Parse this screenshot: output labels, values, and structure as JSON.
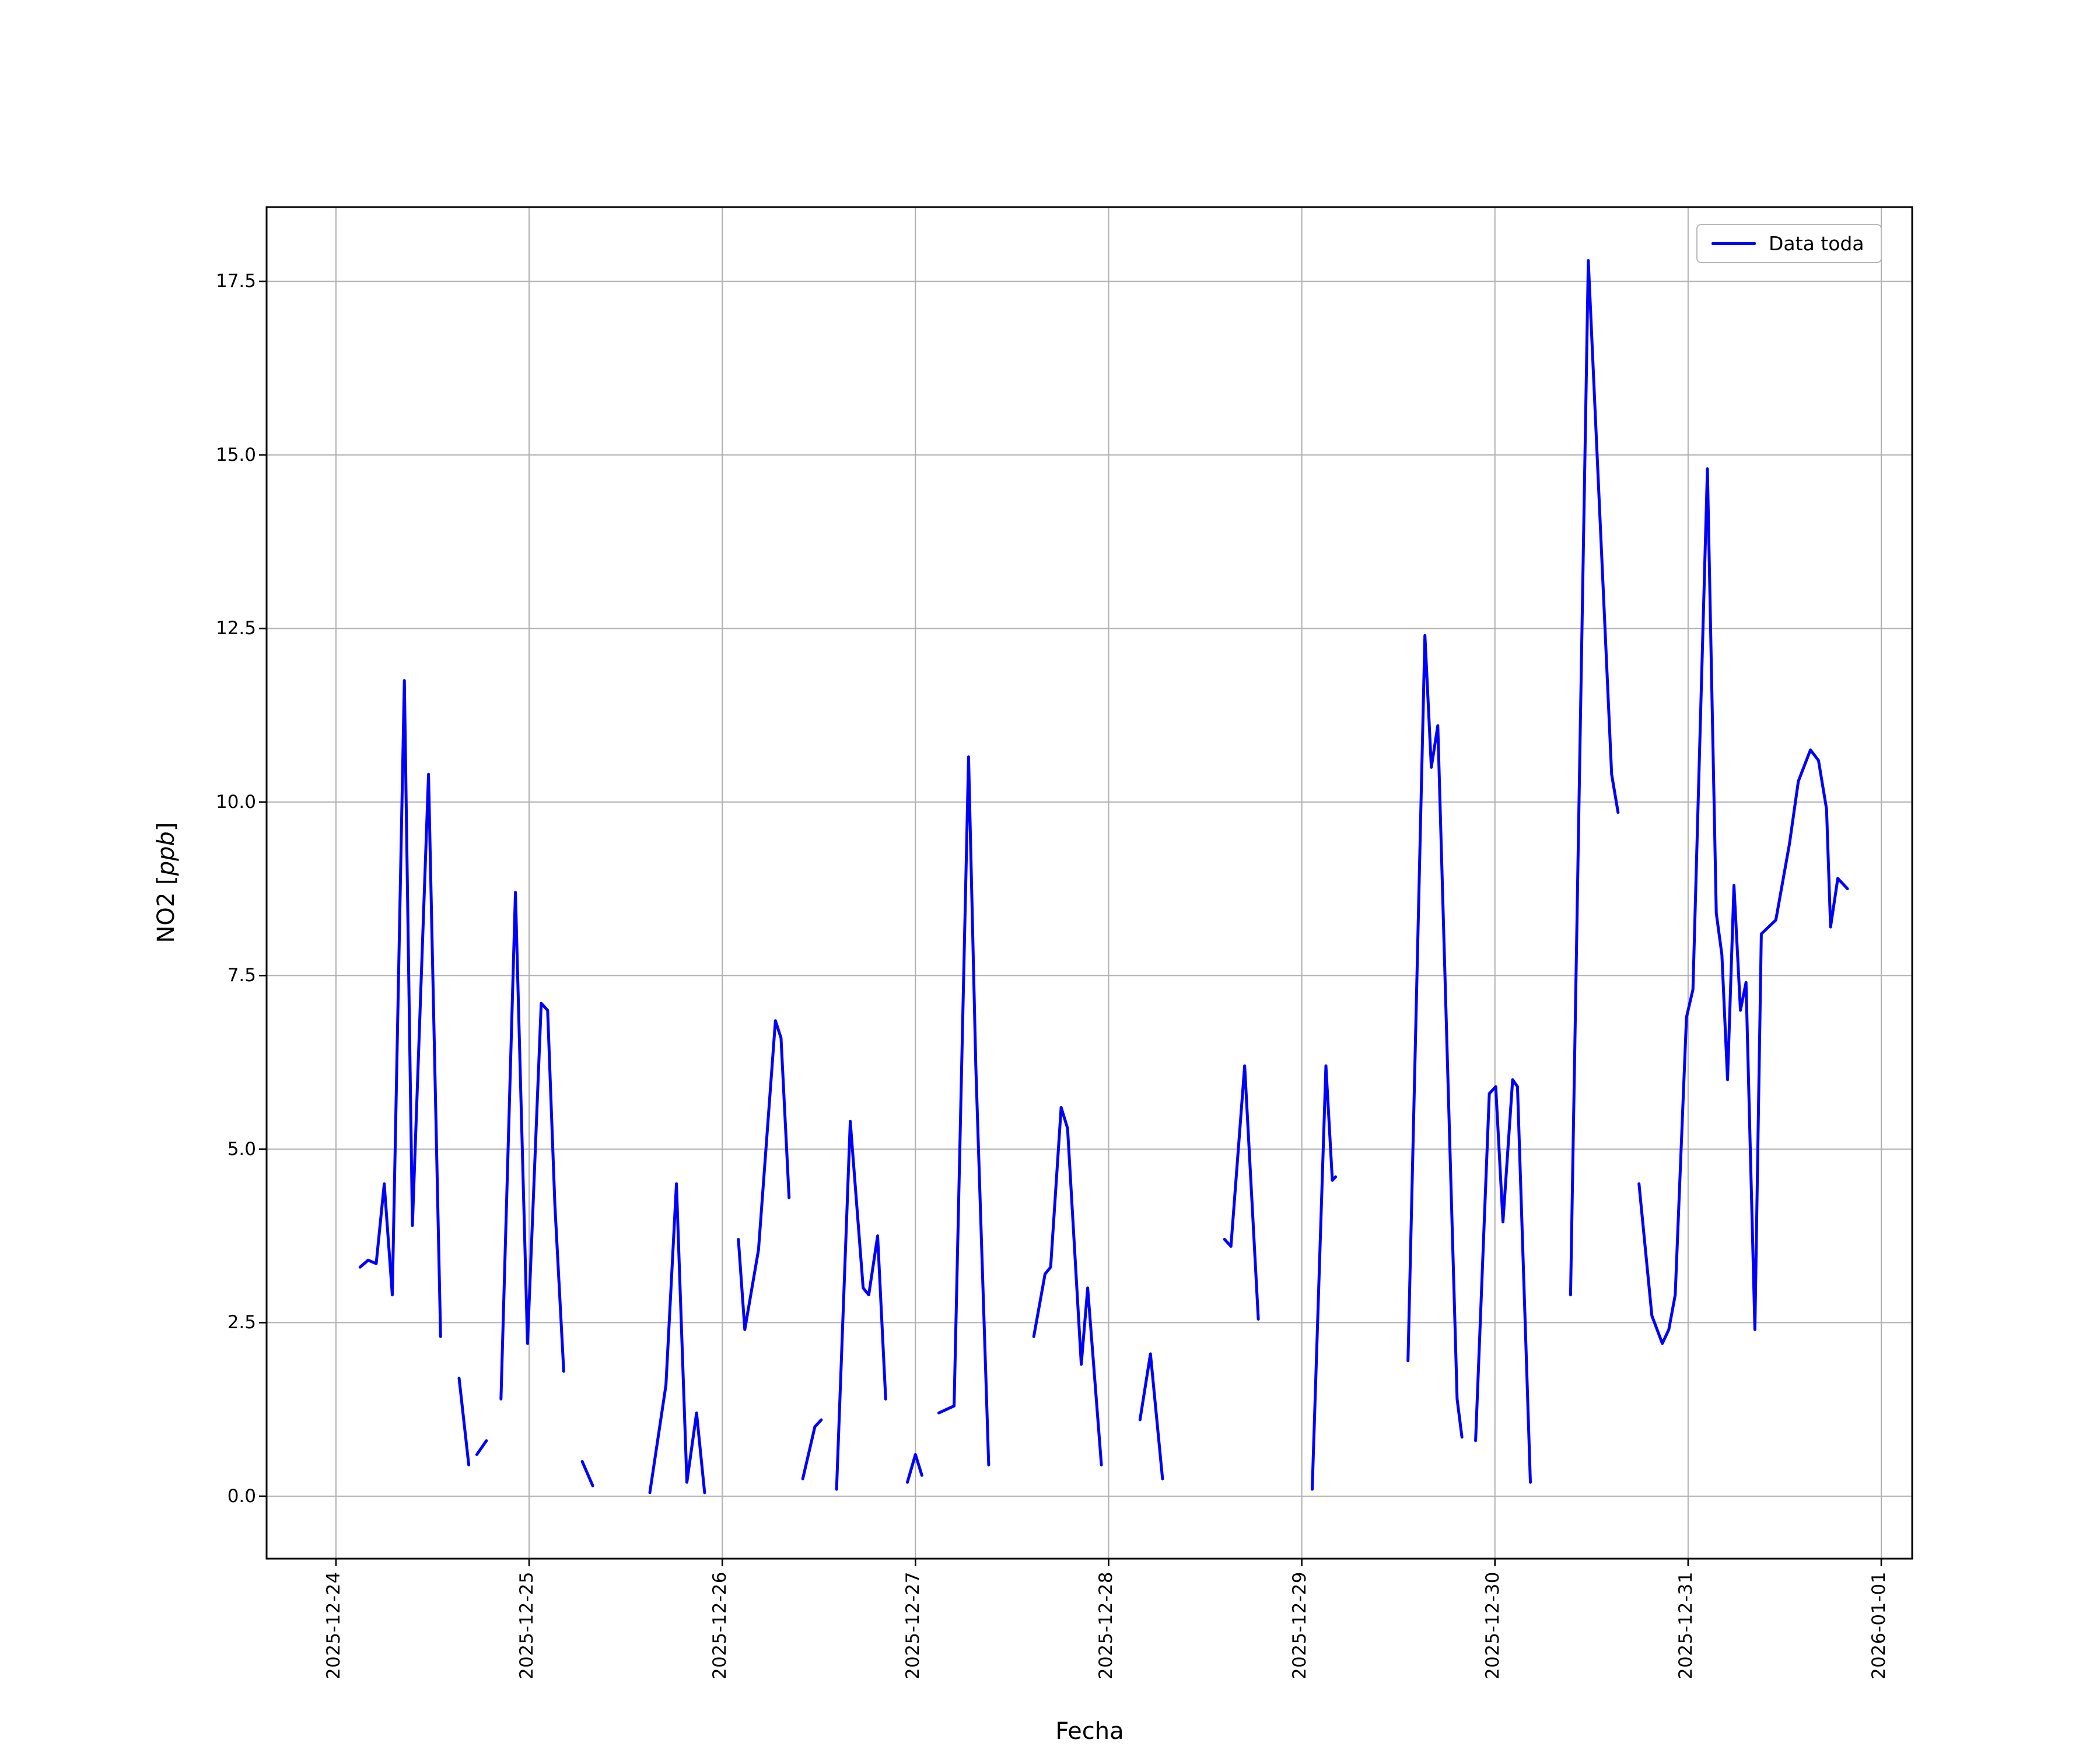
{
  "figure": {
    "background": "#ffffff"
  },
  "chart_data": {
    "type": "line",
    "title": "",
    "xlabel": "Fecha",
    "ylabel": "NO2 [ppb]",
    "ylabel_parts": {
      "prefix": "NO2 [",
      "italic": "ppb",
      "suffix": "]"
    },
    "grid": true,
    "grid_color": "#b0b0b0",
    "axis_color": "#000000",
    "line_color": "#0000ff",
    "legend": {
      "position": "upper right",
      "entries": [
        {
          "label": "Data toda",
          "color": "#0000ff"
        }
      ]
    },
    "x_unit": "hours since 2025-12-24 00:00",
    "xlim_hours": [
      -8.62,
      195.84
    ],
    "ylim": [
      -0.9,
      18.57
    ],
    "x_ticks": [
      {
        "hour": 0,
        "label": "2025-12-24"
      },
      {
        "hour": 24,
        "label": "2025-12-25"
      },
      {
        "hour": 48,
        "label": "2025-12-26"
      },
      {
        "hour": 72,
        "label": "2025-12-27"
      },
      {
        "hour": 96,
        "label": "2025-12-28"
      },
      {
        "hour": 120,
        "label": "2025-12-29"
      },
      {
        "hour": 144,
        "label": "2025-12-30"
      },
      {
        "hour": 168,
        "label": "2025-12-31"
      },
      {
        "hour": 192,
        "label": "2026-01-01"
      }
    ],
    "y_ticks": [
      {
        "value": 0,
        "label": "0.0"
      },
      {
        "value": 2.5,
        "label": "2.5"
      },
      {
        "value": 5,
        "label": "5.0"
      },
      {
        "value": 7.5,
        "label": "7.5"
      },
      {
        "value": 10,
        "label": "10.0"
      },
      {
        "value": 12.5,
        "label": "12.5"
      },
      {
        "value": 15,
        "label": "15.0"
      },
      {
        "value": 17.5,
        "label": "17.5"
      }
    ],
    "series": [
      {
        "name": "Data toda",
        "color": "#0000ff",
        "segments": [
          [
            [
              3,
              3.3
            ],
            [
              4,
              3.4
            ],
            [
              5,
              3.35
            ],
            [
              6,
              4.5
            ],
            [
              7,
              2.9
            ],
            [
              8.5,
              11.75
            ],
            [
              9.5,
              3.9
            ],
            [
              11.5,
              10.4
            ],
            [
              13,
              2.3
            ]
          ],
          [
            [
              15.3,
              1.7
            ],
            [
              16.5,
              0.45
            ]
          ],
          [
            [
              17.5,
              0.6
            ],
            [
              18.7,
              0.8
            ]
          ],
          [
            [
              20.5,
              1.4
            ],
            [
              22.3,
              8.7
            ],
            [
              23.8,
              2.2
            ],
            [
              25.5,
              7.1
            ],
            [
              26.3,
              7.0
            ],
            [
              27.2,
              4.2
            ],
            [
              28.3,
              1.8
            ]
          ],
          [
            [
              30.6,
              0.5
            ],
            [
              31.9,
              0.15
            ]
          ],
          [
            [
              39,
              0.05
            ],
            [
              41,
              1.6
            ],
            [
              42.3,
              4.5
            ],
            [
              43.6,
              0.2
            ],
            [
              44.8,
              1.2
            ],
            [
              45.8,
              0.05
            ]
          ],
          [
            [
              50,
              3.7
            ],
            [
              50.8,
              2.4
            ],
            [
              52.5,
              3.55
            ],
            [
              54.6,
              6.85
            ],
            [
              55.3,
              6.6
            ],
            [
              56.3,
              4.3
            ]
          ],
          [
            [
              58,
              0.25
            ],
            [
              59.5,
              1.0
            ],
            [
              60.3,
              1.1
            ]
          ],
          [
            [
              62.2,
              0.1
            ],
            [
              63.9,
              5.4
            ],
            [
              65.5,
              3.0
            ],
            [
              66.2,
              2.9
            ],
            [
              67.3,
              3.75
            ],
            [
              68.3,
              1.4
            ]
          ],
          [
            [
              71,
              0.2
            ],
            [
              72,
              0.6
            ],
            [
              72.8,
              0.3
            ]
          ],
          [
            [
              74.9,
              1.2
            ],
            [
              76.8,
              1.3
            ],
            [
              78.6,
              10.65
            ],
            [
              79.5,
              6.2
            ],
            [
              81.1,
              0.45
            ]
          ],
          [
            [
              86.7,
              2.3
            ],
            [
              88.1,
              3.2
            ],
            [
              88.8,
              3.3
            ],
            [
              90.1,
              5.6
            ],
            [
              90.9,
              5.3
            ],
            [
              92.6,
              1.9
            ],
            [
              93.4,
              3.0
            ],
            [
              95.1,
              0.45
            ]
          ],
          [
            [
              99.9,
              1.1
            ],
            [
              101.2,
              2.05
            ],
            [
              102.7,
              0.25
            ]
          ],
          [
            [
              110.4,
              3.7
            ],
            [
              111.2,
              3.6
            ],
            [
              112.9,
              6.2
            ],
            [
              114.6,
              2.55
            ]
          ],
          [
            [
              121.3,
              0.1
            ],
            [
              123,
              6.2
            ],
            [
              123.8,
              4.55
            ],
            [
              124.2,
              4.6
            ]
          ],
          [
            [
              133.2,
              1.95
            ],
            [
              135.3,
              12.4
            ],
            [
              136.1,
              10.5
            ],
            [
              136.9,
              11.1
            ],
            [
              139.3,
              1.4
            ],
            [
              139.9,
              0.85
            ]
          ],
          [
            [
              141.6,
              0.8
            ],
            [
              143.3,
              5.8
            ],
            [
              144.1,
              5.9
            ],
            [
              145,
              3.95
            ],
            [
              146.2,
              6.0
            ],
            [
              146.8,
              5.9
            ],
            [
              148.4,
              0.2
            ]
          ],
          [
            [
              153.4,
              2.9
            ],
            [
              155.6,
              17.8
            ],
            [
              156.3,
              16.0
            ],
            [
              158.5,
              10.4
            ],
            [
              159.3,
              9.85
            ]
          ],
          [
            [
              161.9,
              4.5
            ],
            [
              163.5,
              2.6
            ],
            [
              164.8,
              2.2
            ],
            [
              165.6,
              2.4
            ],
            [
              166.4,
              2.9
            ],
            [
              167.8,
              6.9
            ],
            [
              168.6,
              7.3
            ],
            [
              170.4,
              14.8
            ],
            [
              171.5,
              8.4
            ],
            [
              172.2,
              7.8
            ],
            [
              172.9,
              6.0
            ],
            [
              173.7,
              8.8
            ],
            [
              174.5,
              7.0
            ],
            [
              175.2,
              7.4
            ],
            [
              176.3,
              2.4
            ],
            [
              177.1,
              8.1
            ],
            [
              178,
              8.2
            ],
            [
              178.9,
              8.3
            ],
            [
              180.6,
              9.4
            ],
            [
              181.7,
              10.3
            ],
            [
              183.2,
              10.75
            ],
            [
              184.2,
              10.6
            ],
            [
              185.2,
              9.9
            ],
            [
              185.7,
              8.2
            ],
            [
              186.6,
              8.9
            ],
            [
              187.8,
              8.75
            ]
          ]
        ]
      }
    ]
  }
}
